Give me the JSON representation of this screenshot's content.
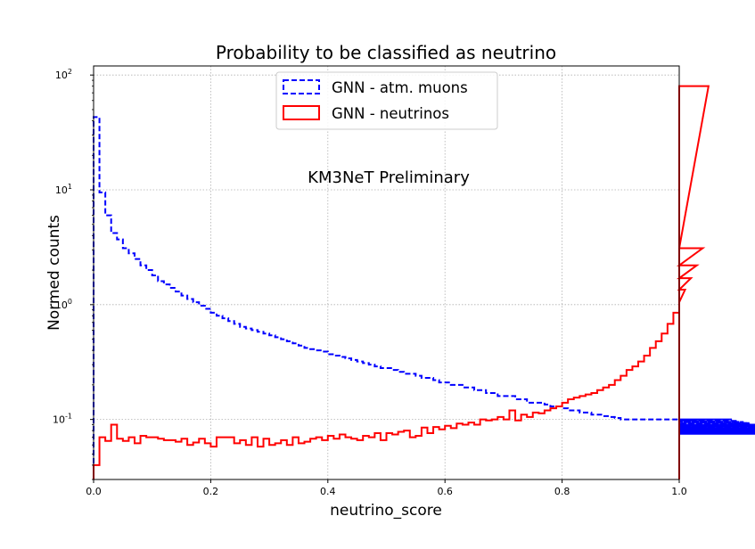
{
  "chart_data": {
    "type": "histogram",
    "title": "Probability to be classified as neutrino",
    "xlabel": "neutrino_score",
    "ylabel": "Normed counts",
    "annotation": "KM3NeT Preliminary",
    "xlim": [
      0,
      1
    ],
    "ylim": [
      0.03,
      120
    ],
    "yscale": "log",
    "grid": true,
    "legend_position": "upper center",
    "x_ticks": [
      "0.0",
      "0.2",
      "0.4",
      "0.6",
      "0.8",
      "1.0"
    ],
    "y_ticks": [
      {
        "base": "10",
        "exp": "-1"
      },
      {
        "base": "10",
        "exp": "0"
      },
      {
        "base": "10",
        "exp": "1"
      },
      {
        "base": "10",
        "exp": "2"
      }
    ],
    "bin_width": 0.01,
    "series": [
      {
        "name": "GNN - atm. muons",
        "color": "#0000ff",
        "style": "dashed",
        "values": [
          43,
          9.5,
          6,
          4.2,
          3.7,
          3.1,
          2.8,
          2.5,
          2.2,
          2.0,
          1.8,
          1.6,
          1.5,
          1.4,
          1.3,
          1.2,
          1.12,
          1.05,
          0.98,
          0.92,
          0.85,
          0.8,
          0.76,
          0.72,
          0.68,
          0.64,
          0.62,
          0.6,
          0.58,
          0.56,
          0.54,
          0.52,
          0.5,
          0.48,
          0.46,
          0.44,
          0.42,
          0.41,
          0.4,
          0.39,
          0.37,
          0.36,
          0.35,
          0.34,
          0.33,
          0.32,
          0.31,
          0.3,
          0.29,
          0.28,
          0.28,
          0.27,
          0.26,
          0.25,
          0.25,
          0.24,
          0.23,
          0.23,
          0.22,
          0.21,
          0.21,
          0.2,
          0.2,
          0.19,
          0.19,
          0.18,
          0.18,
          0.17,
          0.17,
          0.16,
          0.16,
          0.16,
          0.15,
          0.15,
          0.14,
          0.14,
          0.14,
          0.135,
          0.13,
          0.13,
          0.125,
          0.12,
          0.12,
          0.115,
          0.115,
          0.11,
          0.11,
          0.107,
          0.105,
          0.103,
          0.1,
          0.1,
          0.1,
          0.1,
          0.1,
          0.1,
          0.1,
          0.1,
          0.1,
          0.1,
          0.1,
          0.1,
          0.1,
          0.1,
          0.1,
          0.1,
          0.1,
          0.1,
          0.1,
          0.1,
          0.097,
          0.095,
          0.093,
          0.09,
          0.09,
          0.088,
          0.087,
          0.085,
          0.085,
          0.083,
          0.083,
          0.083,
          0.082,
          0.082,
          0.081,
          0.08,
          0.08,
          0.079,
          0.079,
          0.078,
          0.078,
          0.077,
          0.077,
          0.077,
          0.076,
          0.076,
          0.075,
          0.075,
          0.075,
          0.075
        ]
      },
      {
        "name": "GNN - neutrinos",
        "color": "#ff0000",
        "style": "solid",
        "values": [
          0.04,
          0.07,
          0.065,
          0.09,
          0.068,
          0.065,
          0.07,
          0.062,
          0.072,
          0.07,
          0.07,
          0.068,
          0.066,
          0.066,
          0.064,
          0.068,
          0.06,
          0.063,
          0.068,
          0.062,
          0.058,
          0.07,
          0.07,
          0.07,
          0.062,
          0.066,
          0.06,
          0.07,
          0.058,
          0.068,
          0.06,
          0.062,
          0.066,
          0.06,
          0.07,
          0.062,
          0.064,
          0.068,
          0.07,
          0.066,
          0.072,
          0.068,
          0.074,
          0.07,
          0.068,
          0.066,
          0.072,
          0.07,
          0.076,
          0.066,
          0.076,
          0.074,
          0.078,
          0.08,
          0.07,
          0.072,
          0.085,
          0.076,
          0.086,
          0.082,
          0.088,
          0.084,
          0.092,
          0.09,
          0.094,
          0.09,
          0.1,
          0.098,
          0.1,
          0.105,
          0.1,
          0.12,
          0.098,
          0.11,
          0.105,
          0.115,
          0.113,
          0.12,
          0.125,
          0.13,
          0.14,
          0.15,
          0.155,
          0.16,
          0.165,
          0.17,
          0.18,
          0.19,
          0.2,
          0.22,
          0.24,
          0.27,
          0.29,
          0.32,
          0.36,
          0.42,
          0.48,
          0.56,
          0.68,
          0.85,
          1.05,
          1.35,
          1.7,
          2.2,
          3.1,
          80
        ]
      }
    ]
  }
}
